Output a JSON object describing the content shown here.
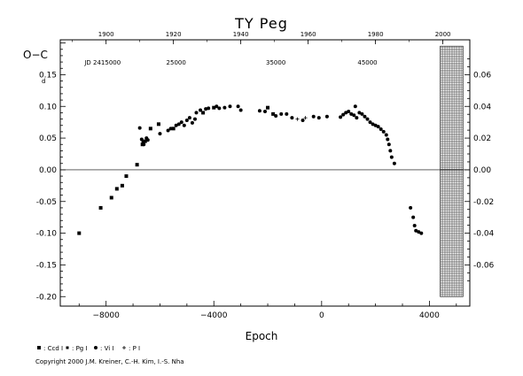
{
  "chart_data": {
    "type": "scatter",
    "title": "TY  Peg",
    "ylabel": "O−C",
    "ylabel_unit": "d",
    "xlabel": "Epoch",
    "xlim": [
      -9700,
      5500
    ],
    "ylim": [
      -0.215,
      0.205
    ],
    "grid": false,
    "zero_line": true,
    "x_ticks": [
      -8000,
      -4000,
      0,
      4000
    ],
    "y_ticks_left": [
      "0.15",
      "0.10",
      "0.05",
      "0.00",
      "-0.05",
      "-0.10",
      "-0.15",
      "-0.20"
    ],
    "y_ticks_left_values": [
      0.15,
      0.1,
      0.05,
      0.0,
      -0.05,
      -0.1,
      -0.15,
      -0.2
    ],
    "y_ticks_right": [
      "0.06",
      "0.04",
      "0.02",
      "0.00",
      "-0.02",
      "-0.04",
      "-0.06"
    ],
    "y_ticks_right_values": [
      0.06,
      0.04,
      0.02,
      0.0,
      -0.02,
      -0.04,
      -0.06
    ],
    "top_year_ticks": [
      {
        "label": "1900",
        "x": -8000
      },
      {
        "label": "1920",
        "x": -5500
      },
      {
        "label": "1940",
        "x": -3000
      },
      {
        "label": "1960",
        "x": -500
      },
      {
        "label": "1980",
        "x": 2000
      },
      {
        "label": "2000",
        "x": 4500
      }
    ],
    "jd_labels": [
      {
        "label": "JD  2415000",
        "x": -8800
      },
      {
        "label": "25000",
        "x": -5400
      },
      {
        "label": "35000",
        "x": -1700
      },
      {
        "label": "45000",
        "x": 1700
      }
    ],
    "future_band_x": [
      4400,
      5250
    ],
    "legend": [
      {
        "symbol": "square",
        "label": ": Ccd I"
      },
      {
        "symbol": "square-small",
        "label": ": Pg I"
      },
      {
        "symbol": "circle",
        "label": ": Vi I"
      },
      {
        "symbol": "plus",
        "label": ": P I"
      }
    ],
    "series": [
      {
        "symbol": "square",
        "points": [
          [
            -9000,
            -0.1
          ],
          [
            -8200,
            -0.06
          ],
          [
            -7800,
            -0.044
          ],
          [
            -7600,
            -0.03
          ],
          [
            -7400,
            -0.025
          ],
          [
            -7250,
            -0.01
          ],
          [
            -6850,
            0.008
          ],
          [
            -6650,
            0.04
          ],
          [
            -6550,
            0.045
          ],
          [
            -6350,
            0.065
          ],
          [
            -6050,
            0.072
          ],
          [
            -5500,
            0.065
          ],
          [
            -4400,
            0.09
          ],
          [
            -4000,
            0.098
          ],
          [
            -2000,
            0.098
          ],
          [
            -1800,
            0.088
          ]
        ]
      },
      {
        "symbol": "circle",
        "points": [
          [
            -6750,
            0.066
          ],
          [
            -6680,
            0.048
          ],
          [
            -6620,
            0.044
          ],
          [
            -6600,
            0.04
          ],
          [
            -6500,
            0.05
          ],
          [
            -6450,
            0.047
          ],
          [
            -6000,
            0.057
          ],
          [
            -5700,
            0.062
          ],
          [
            -5600,
            0.065
          ],
          [
            -5400,
            0.07
          ],
          [
            -5300,
            0.072
          ],
          [
            -5200,
            0.075
          ],
          [
            -5100,
            0.07
          ],
          [
            -5000,
            0.078
          ],
          [
            -4900,
            0.082
          ],
          [
            -4800,
            0.074
          ],
          [
            -4700,
            0.08
          ],
          [
            -4650,
            0.09
          ],
          [
            -4500,
            0.094
          ],
          [
            -4300,
            0.096
          ],
          [
            -4200,
            0.097
          ],
          [
            -3900,
            0.1
          ],
          [
            -3800,
            0.097
          ],
          [
            -3600,
            0.098
          ],
          [
            -3400,
            0.1
          ],
          [
            -3100,
            0.1
          ],
          [
            -3000,
            0.094
          ],
          [
            -2300,
            0.093
          ],
          [
            -2100,
            0.092
          ],
          [
            -1700,
            0.085
          ],
          [
            -1500,
            0.088
          ],
          [
            -1300,
            0.088
          ],
          [
            -1100,
            0.082
          ],
          [
            -700,
            0.078
          ],
          [
            -300,
            0.084
          ],
          [
            -100,
            0.082
          ],
          [
            200,
            0.084
          ],
          [
            700,
            0.083
          ],
          [
            800,
            0.087
          ],
          [
            900,
            0.09
          ],
          [
            1000,
            0.092
          ],
          [
            1100,
            0.088
          ],
          [
            1200,
            0.086
          ],
          [
            1300,
            0.082
          ],
          [
            1400,
            0.09
          ],
          [
            1500,
            0.088
          ],
          [
            1600,
            0.084
          ],
          [
            1700,
            0.08
          ],
          [
            1800,
            0.075
          ],
          [
            1900,
            0.072
          ],
          [
            2000,
            0.07
          ],
          [
            2100,
            0.068
          ],
          [
            2200,
            0.064
          ],
          [
            2300,
            0.06
          ],
          [
            2400,
            0.055
          ],
          [
            2450,
            0.048
          ],
          [
            2500,
            0.04
          ],
          [
            2550,
            0.03
          ],
          [
            2600,
            0.02
          ],
          [
            2700,
            0.01
          ],
          [
            3300,
            -0.06
          ],
          [
            3400,
            -0.075
          ],
          [
            3450,
            -0.088
          ],
          [
            3500,
            -0.096
          ],
          [
            3600,
            -0.098
          ],
          [
            3700,
            -0.1
          ],
          [
            1250,
            0.1
          ]
        ]
      },
      {
        "symbol": "plus",
        "points": [
          [
            -900,
            0.08
          ],
          [
            -600,
            0.082
          ]
        ]
      }
    ]
  },
  "copyright": "Copyright 2000 J.M. Kreiner, C.-H. Kim, I.-S. Nha"
}
